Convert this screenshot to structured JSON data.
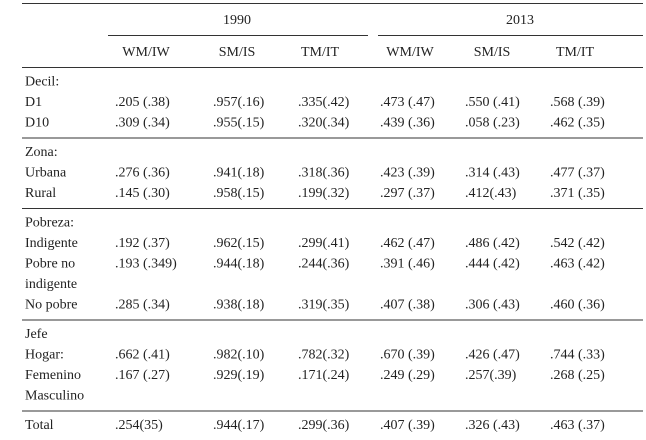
{
  "header": {
    "years": [
      "1990",
      "2013"
    ],
    "columns": [
      "WM/IW",
      "SM/IS",
      "TM/IT",
      "WM/IW",
      "SM/IS",
      "TM/IT"
    ]
  },
  "sections": [
    {
      "rows": [
        {
          "label": "Decil:"
        },
        {
          "label": "D1",
          "cells": [
            ".205 (.38)",
            ".957(.16)",
            ".335(.42)",
            ".473 (.47)",
            ".550 (.41)",
            ".568 (.39)"
          ]
        },
        {
          "label": "D10",
          "cells": [
            ".309 (.34)",
            ".955(.15)",
            ".320(.34)",
            ".439 (.36)",
            ".058 (.23)",
            ".462 (.35)"
          ]
        }
      ]
    },
    {
      "rows": [
        {
          "label": "Zona:"
        },
        {
          "label": "Urbana",
          "cells": [
            ".276 (.36)",
            ".941(.18)",
            ".318(.36)",
            ".423 (.39)",
            ".314 (.43)",
            ".477 (.37)"
          ]
        },
        {
          "label": "Rural",
          "cells": [
            ".145 (.30)",
            ".958(.15)",
            ".199(.32)",
            ".297 (.37)",
            ".412(.43)",
            ".371 (.35)"
          ]
        }
      ]
    },
    {
      "rows": [
        {
          "label": "Pobreza:"
        },
        {
          "label": "Indigente",
          "cells": [
            ".192 (.37)",
            ".962(.15)",
            ".299(.41)",
            ".462 (.47)",
            ".486 (.42)",
            ".542 (.42)"
          ]
        },
        {
          "label": "Pobre no",
          "cells": [
            ".193 (.349)",
            ".944(.18)",
            ".244(.36)",
            ".391 (.46)",
            ".444 (.42)",
            ".463 (.42)"
          ]
        },
        {
          "label": "indigente"
        },
        {
          "label": "No pobre",
          "cells": [
            ".285 (.34)",
            ".938(.18)",
            ".319(.35)",
            ".407 (.38)",
            ".306 (.43)",
            ".460 (.36)"
          ]
        }
      ]
    },
    {
      "rows": [
        {
          "label": "Jefe"
        },
        {
          "label": "Hogar:",
          "cells": [
            ".662 (.41)",
            ".982(.10)",
            ".782(.32)",
            ".670 (.39)",
            ".426 (.47)",
            ".744 (.33)"
          ]
        },
        {
          "label": "Femenino",
          "cells": [
            ".167 (.27)",
            ".929(.19)",
            ".171(.24)",
            ".249 (.29)",
            ".257(.39)",
            ".268 (.25)"
          ]
        },
        {
          "label": "Masculino"
        }
      ]
    },
    {
      "rows": [
        {
          "label": "Total",
          "cells": [
            ".254(35)",
            ".944(.17)",
            ".299(.36)",
            ".407 (.39)",
            ".326 (.43)",
            ".463 (.37)"
          ]
        }
      ]
    }
  ]
}
